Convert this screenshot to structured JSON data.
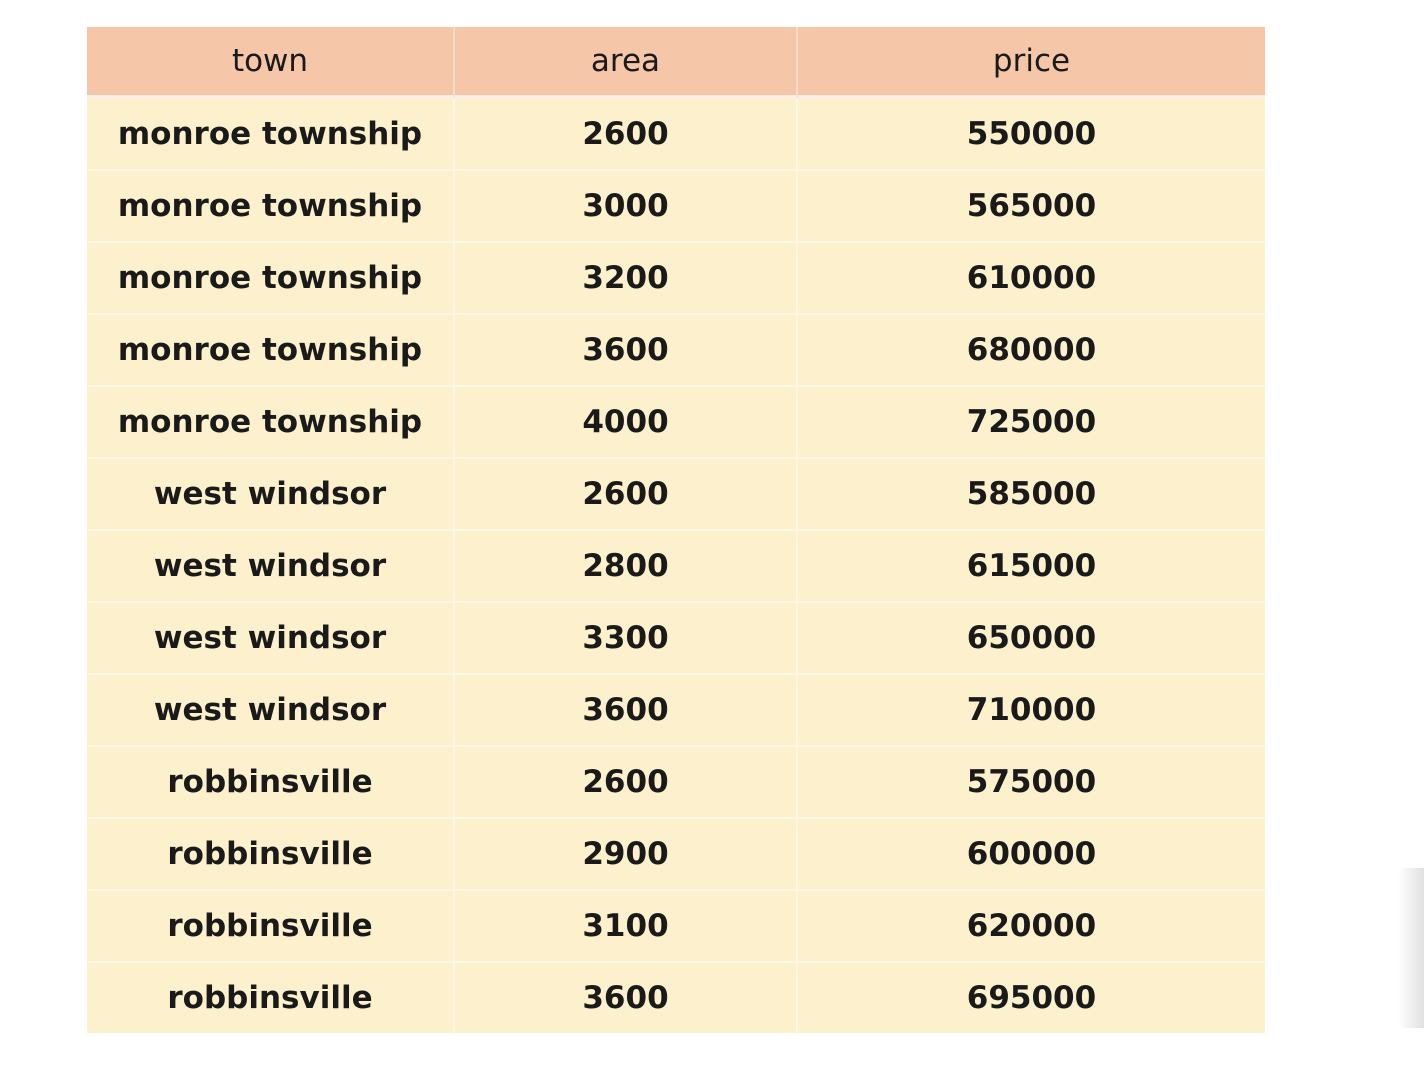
{
  "table": {
    "headers": [
      "town",
      "area",
      "price"
    ],
    "rows": [
      [
        "monroe township",
        "2600",
        "550000"
      ],
      [
        "monroe township",
        "3000",
        "565000"
      ],
      [
        "monroe township",
        "3200",
        "610000"
      ],
      [
        "monroe township",
        "3600",
        "680000"
      ],
      [
        "monroe township",
        "4000",
        "725000"
      ],
      [
        "west windsor",
        "2600",
        "585000"
      ],
      [
        "west windsor",
        "2800",
        "615000"
      ],
      [
        "west windsor",
        "3300",
        "650000"
      ],
      [
        "west windsor",
        "3600",
        "710000"
      ],
      [
        "robbinsville",
        "2600",
        "575000"
      ],
      [
        "robbinsville",
        "2900",
        "600000"
      ],
      [
        "robbinsville",
        "3100",
        "620000"
      ],
      [
        "robbinsville",
        "3600",
        "695000"
      ]
    ]
  },
  "colors": {
    "header_bg": "#f5c6a8",
    "row_bg": "#fdf0cc"
  }
}
